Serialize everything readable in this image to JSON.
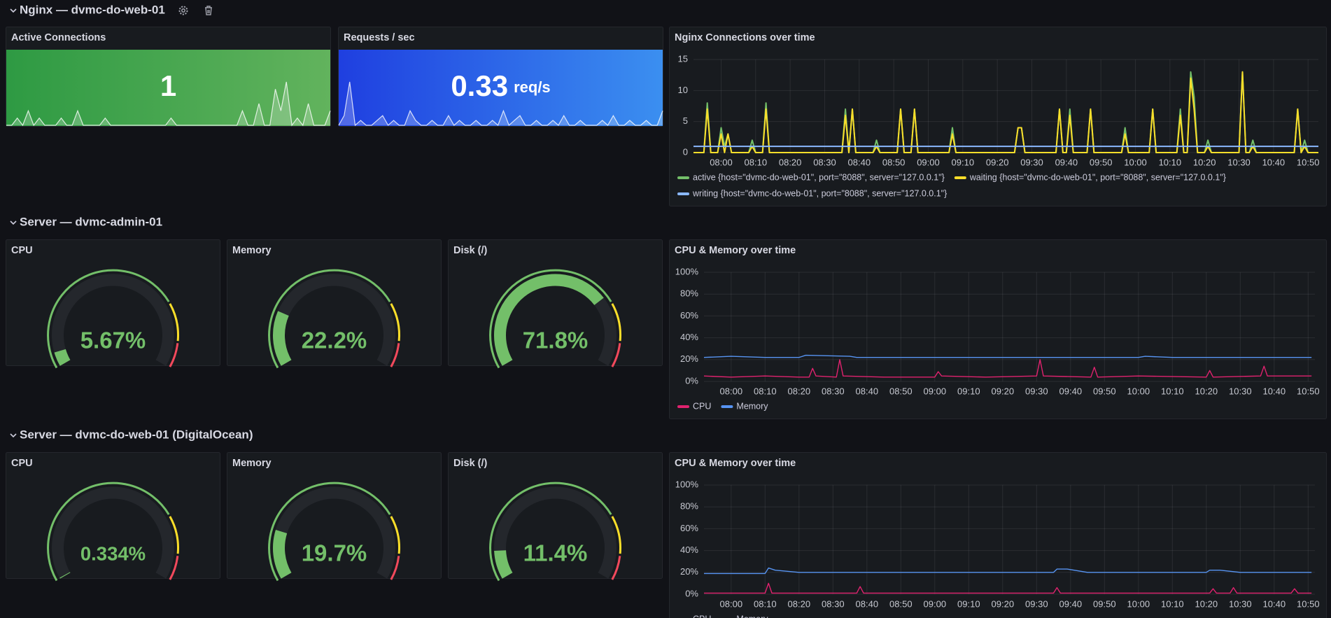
{
  "sections": [
    {
      "title": "Nginx — dvmc-do-web-01",
      "panels": [
        {
          "type": "stat",
          "title": "Active Connections",
          "value": 1,
          "colors": [
            "#2e9a43",
            "#62b35d"
          ],
          "sparkline": [
            0,
            0,
            1,
            0,
            2,
            0,
            1,
            0,
            0,
            0,
            1,
            0,
            0,
            2,
            0,
            0,
            0,
            0,
            1,
            0,
            0,
            0,
            0,
            0,
            0,
            0,
            0,
            0,
            0,
            0,
            1,
            0,
            0,
            0,
            0,
            0,
            0,
            0,
            0,
            0,
            0,
            0,
            0,
            2,
            0,
            0,
            3,
            0,
            0,
            5,
            2,
            6,
            0,
            1,
            0,
            3,
            0,
            0,
            0,
            2
          ]
        },
        {
          "type": "stat",
          "title": "Requests / sec",
          "value": 0.33,
          "unit": "req/s",
          "colors": [
            "#1f3fe0",
            "#3b8ff0"
          ],
          "sparkline": [
            0,
            2,
            9,
            0,
            1,
            0,
            0,
            1,
            2,
            0,
            1,
            0,
            0,
            3,
            1,
            0,
            0,
            1,
            0,
            0,
            2,
            0,
            1,
            0,
            0,
            1,
            0,
            0,
            1,
            0,
            3,
            0,
            1,
            2,
            0,
            0,
            1,
            0,
            0,
            1,
            0,
            2,
            0,
            0,
            1,
            0,
            0,
            0,
            1,
            0,
            2,
            0,
            0,
            1,
            0,
            0,
            1,
            0,
            0,
            3
          ]
        },
        {
          "type": "line",
          "title": "Nginx Connections over time",
          "x": [
            "07:52",
            "07:55",
            "07:56",
            "07:57",
            "07:59",
            "08:00",
            "08:01",
            "08:02",
            "08:03",
            "08:08",
            "08:09",
            "08:10",
            "08:12",
            "08:13",
            "08:14",
            "08:35",
            "08:36",
            "08:37",
            "08:38",
            "08:39",
            "08:44",
            "08:45",
            "08:46",
            "08:51",
            "08:52",
            "08:53",
            "08:55",
            "08:56",
            "08:57",
            "09:06",
            "09:07",
            "09:08",
            "09:25",
            "09:26",
            "09:27",
            "09:28",
            "09:37",
            "09:38",
            "09:39",
            "09:40",
            "09:41",
            "09:42",
            "09:46",
            "09:47",
            "09:48",
            "09:56",
            "09:57",
            "09:58",
            "10:04",
            "10:05",
            "10:06",
            "10:12",
            "10:13",
            "10:14",
            "10:15",
            "10:16",
            "10:17",
            "10:18",
            "10:20",
            "10:21",
            "10:22",
            "10:30",
            "10:31",
            "10:32",
            "10:33",
            "10:34",
            "10:35",
            "10:46",
            "10:47",
            "10:48",
            "10:49",
            "10:50",
            "10:53"
          ],
          "xlim": [
            "07:52",
            "10:53"
          ],
          "xticks": [
            "08:00",
            "08:10",
            "08:20",
            "08:30",
            "08:40",
            "08:50",
            "09:00",
            "09:10",
            "09:20",
            "09:30",
            "09:40",
            "09:50",
            "10:00",
            "10:10",
            "10:20",
            "10:30",
            "10:40",
            "10:50"
          ],
          "ylim": [
            0,
            15
          ],
          "yticks": [
            0,
            5,
            10,
            15
          ],
          "grid": true,
          "series": [
            {
              "name": "active {host=\"dvmc-do-web-01\", port=\"8088\", server=\"127.0.0.1\"}",
              "color": "#73bf69",
              "values": [
                0,
                0,
                8,
                0,
                0,
                4,
                1,
                3,
                0,
                0,
                2,
                0,
                0,
                8,
                0,
                0,
                7,
                0,
                7,
                0,
                0,
                2,
                0,
                0,
                7,
                0,
                0,
                7,
                0,
                0,
                4,
                0,
                0,
                4,
                4,
                0,
                0,
                7,
                0,
                0,
                7,
                0,
                0,
                7,
                0,
                0,
                4,
                0,
                0,
                7,
                0,
                0,
                7,
                0,
                0,
                13,
                9,
                0,
                0,
                2,
                0,
                0,
                13,
                0,
                0,
                2,
                0,
                0,
                7,
                0,
                2,
                0,
                0
              ]
            },
            {
              "name": "waiting {host=\"dvmc-do-web-01\", port=\"8088\", server=\"127.0.0.1\"}",
              "color": "#fade2a",
              "values": [
                0,
                0,
                7,
                0,
                0,
                3,
                0,
                3,
                0,
                0,
                1,
                0,
                0,
                7,
                0,
                0,
                6,
                0,
                7,
                0,
                0,
                1,
                0,
                0,
                7,
                0,
                0,
                7,
                0,
                0,
                3,
                0,
                0,
                4,
                4,
                0,
                0,
                7,
                0,
                0,
                6,
                0,
                0,
                7,
                0,
                0,
                3,
                0,
                0,
                7,
                0,
                0,
                6,
                0,
                0,
                12,
                7,
                0,
                0,
                1,
                0,
                0,
                13,
                0,
                0,
                1,
                0,
                0,
                7,
                0,
                1,
                0,
                0
              ]
            },
            {
              "name": "writing {host=\"dvmc-do-web-01\", port=\"8088\", server=\"127.0.0.1\"}",
              "color": "#8ab8ff",
              "x": [
                "07:52",
                "10:53"
              ],
              "values": [
                1,
                1
              ]
            }
          ]
        }
      ]
    },
    {
      "title": "Server — dvmc-admin-01",
      "panels": [
        {
          "type": "gauge",
          "title": "CPU",
          "value": 5.67,
          "value_label": "5.67%",
          "min": 0,
          "max": 100,
          "color": "#73bf69",
          "thresholds": [
            {
              "value": 75,
              "color": "#fade2a"
            },
            {
              "value": 90,
              "color": "#f2495c"
            }
          ]
        },
        {
          "type": "gauge",
          "title": "Memory",
          "value": 22.2,
          "value_label": "22.2%",
          "min": 0,
          "max": 100,
          "color": "#73bf69",
          "thresholds": [
            {
              "value": 75,
              "color": "#fade2a"
            },
            {
              "value": 90,
              "color": "#f2495c"
            }
          ]
        },
        {
          "type": "gauge",
          "title": "Disk (/)",
          "value": 71.8,
          "value_label": "71.8%",
          "min": 0,
          "max": 100,
          "color": "#73bf69",
          "thresholds": [
            {
              "value": 75,
              "color": "#fade2a"
            },
            {
              "value": 90,
              "color": "#f2495c"
            }
          ]
        },
        {
          "type": "line",
          "title": "CPU & Memory over time",
          "xlim": [
            "07:52",
            "10:52"
          ],
          "xticks": [
            "08:00",
            "08:10",
            "08:20",
            "08:30",
            "08:40",
            "08:50",
            "09:00",
            "09:10",
            "09:20",
            "09:30",
            "09:40",
            "09:50",
            "10:00",
            "10:10",
            "10:20",
            "10:30",
            "10:40",
            "10:50"
          ],
          "ylim": [
            0,
            100
          ],
          "yticks": [
            {
              "value": 0,
              "label": "0%"
            },
            {
              "value": 20,
              "label": "20%"
            },
            {
              "value": 40,
              "label": "40%"
            },
            {
              "value": 60,
              "label": "60%"
            },
            {
              "value": 80,
              "label": "80%"
            },
            {
              "value": 100,
              "label": "100%"
            }
          ],
          "grid": true,
          "series": [
            {
              "name": "CPU",
              "color": "#e0226e",
              "x": [
                "07:52",
                "08:00",
                "08:10",
                "08:20",
                "08:23",
                "08:24",
                "08:25",
                "08:31",
                "08:32",
                "08:33",
                "08:45",
                "09:00",
                "09:01",
                "09:02",
                "09:15",
                "09:30",
                "09:31",
                "09:32",
                "09:46",
                "09:47",
                "09:48",
                "10:00",
                "10:20",
                "10:21",
                "10:22",
                "10:36",
                "10:37",
                "10:38",
                "10:51"
              ],
              "values": [
                5,
                4,
                5,
                4,
                4,
                12,
                5,
                4,
                20,
                5,
                4,
                4,
                9,
                5,
                4,
                5,
                20,
                5,
                4,
                13,
                4,
                5,
                4,
                10,
                4,
                5,
                14,
                5,
                5
              ]
            },
            {
              "name": "Memory",
              "color": "#5794f2",
              "x": [
                "07:52",
                "08:00",
                "08:10",
                "08:20",
                "08:22",
                "08:35",
                "08:37",
                "09:00",
                "09:30",
                "10:00",
                "10:02",
                "10:10",
                "10:30",
                "10:51"
              ],
              "values": [
                22,
                23,
                22,
                22,
                24,
                23,
                22,
                22,
                22,
                22,
                23,
                22,
                22,
                22
              ]
            }
          ]
        }
      ]
    },
    {
      "title": "Server — dvmc-do-web-01 (DigitalOcean)",
      "panels": [
        {
          "type": "gauge",
          "title": "CPU",
          "value": 0.334,
          "value_label": "0.334%",
          "min": 0,
          "max": 100,
          "color": "#73bf69",
          "thresholds": [
            {
              "value": 75,
              "color": "#fade2a"
            },
            {
              "value": 90,
              "color": "#f2495c"
            }
          ]
        },
        {
          "type": "gauge",
          "title": "Memory",
          "value": 19.7,
          "value_label": "19.7%",
          "min": 0,
          "max": 100,
          "color": "#73bf69",
          "thresholds": [
            {
              "value": 75,
              "color": "#fade2a"
            },
            {
              "value": 90,
              "color": "#f2495c"
            }
          ]
        },
        {
          "type": "gauge",
          "title": "Disk (/)",
          "value": 11.4,
          "value_label": "11.4%",
          "min": 0,
          "max": 100,
          "color": "#73bf69",
          "thresholds": [
            {
              "value": 75,
              "color": "#fade2a"
            },
            {
              "value": 90,
              "color": "#f2495c"
            }
          ]
        },
        {
          "type": "line",
          "title": "CPU & Memory over time",
          "xlim": [
            "07:52",
            "10:52"
          ],
          "xticks": [
            "08:00",
            "08:10",
            "08:20",
            "08:30",
            "08:40",
            "08:50",
            "09:00",
            "09:10",
            "09:20",
            "09:30",
            "09:40",
            "09:50",
            "10:00",
            "10:10",
            "10:20",
            "10:30",
            "10:40",
            "10:50"
          ],
          "ylim": [
            0,
            100
          ],
          "yticks": [
            {
              "value": 0,
              "label": "0%"
            },
            {
              "value": 20,
              "label": "20%"
            },
            {
              "value": 40,
              "label": "40%"
            },
            {
              "value": 60,
              "label": "60%"
            },
            {
              "value": 80,
              "label": "80%"
            },
            {
              "value": 100,
              "label": "100%"
            }
          ],
          "grid": true,
          "series": [
            {
              "name": "CPU",
              "color": "#e0226e",
              "x": [
                "07:52",
                "08:10",
                "08:11",
                "08:12",
                "08:37",
                "08:38",
                "08:39",
                "09:35",
                "09:36",
                "09:37",
                "10:21",
                "10:22",
                "10:23",
                "10:27",
                "10:28",
                "10:29",
                "10:45",
                "10:46",
                "10:47",
                "10:51"
              ],
              "values": [
                1,
                1,
                10,
                1,
                1,
                7,
                1,
                1,
                6,
                1,
                1,
                5,
                1,
                1,
                6,
                1,
                1,
                5,
                1,
                1
              ]
            },
            {
              "name": "Memory",
              "color": "#5794f2",
              "x": [
                "07:52",
                "08:10",
                "08:11",
                "08:13",
                "08:20",
                "09:35",
                "09:36",
                "09:39",
                "09:45",
                "10:20",
                "10:21",
                "10:24",
                "10:30",
                "10:51"
              ],
              "values": [
                19,
                19,
                24,
                22,
                20,
                20,
                23,
                23,
                20,
                20,
                22,
                22,
                20,
                20
              ]
            }
          ]
        }
      ]
    }
  ]
}
